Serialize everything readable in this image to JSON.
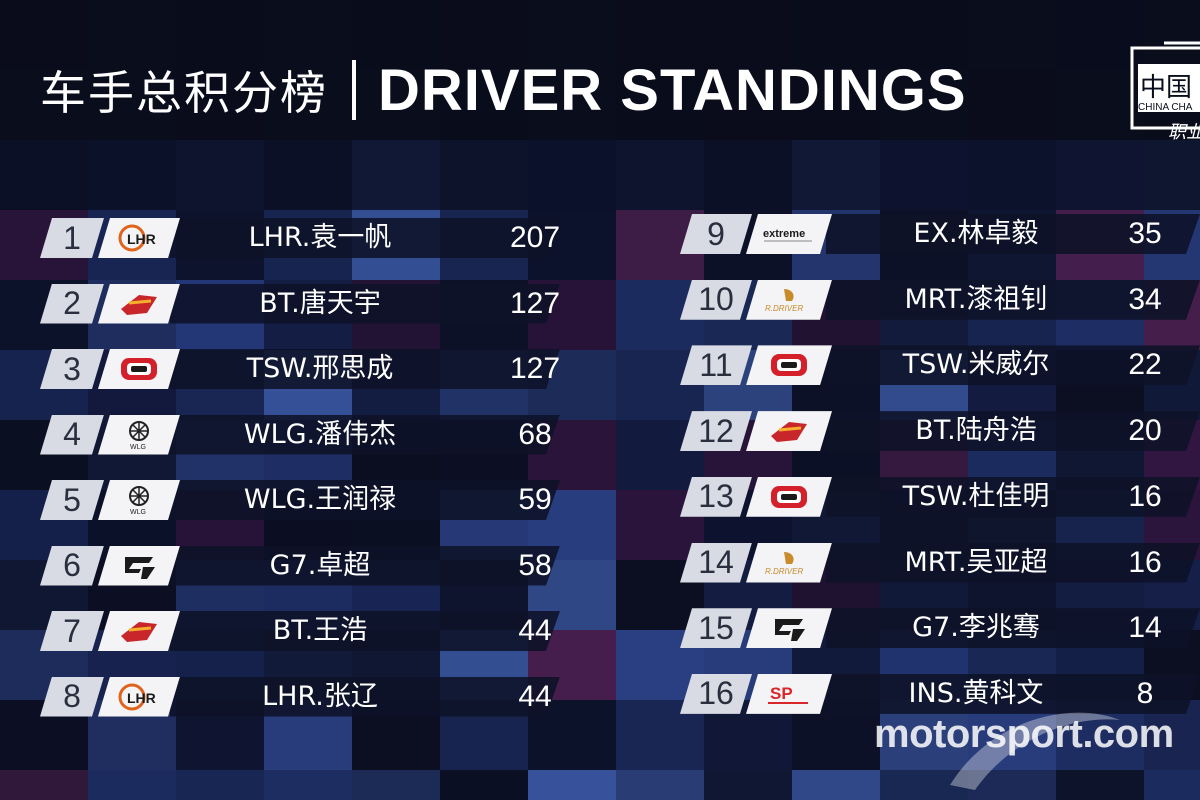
{
  "header": {
    "title_cn": "车手总积分榜",
    "title_en": "DRIVER STANDINGS",
    "series_logo_text_cn": "中国",
    "series_logo_text_en": "CHINA CHA",
    "series_logo_sub": "职业"
  },
  "standings": {
    "left": [
      {
        "pos": "1",
        "team": "LHR",
        "driver": "LHR.袁一帆",
        "points": "207",
        "logo": "lhr-logo"
      },
      {
        "pos": "2",
        "team": "BT",
        "driver": "BT.唐天宇",
        "points": "127",
        "logo": "bt-logo"
      },
      {
        "pos": "3",
        "team": "TSW",
        "driver": "TSW.邢思成",
        "points": "127",
        "logo": "tsw-logo"
      },
      {
        "pos": "4",
        "team": "WLG",
        "driver": "WLG.潘伟杰",
        "points": "68",
        "logo": "wlg-logo"
      },
      {
        "pos": "5",
        "team": "WLG",
        "driver": "WLG.王润禄",
        "points": "59",
        "logo": "wlg-logo"
      },
      {
        "pos": "6",
        "team": "G7",
        "driver": "G7.卓超",
        "points": "58",
        "logo": "g7-logo"
      },
      {
        "pos": "7",
        "team": "BT",
        "driver": "BT.王浩",
        "points": "44",
        "logo": "bt-logo"
      },
      {
        "pos": "8",
        "team": "LHR",
        "driver": "LHR.张辽",
        "points": "44",
        "logo": "lhr-logo"
      }
    ],
    "right": [
      {
        "pos": "9",
        "team": "EX",
        "driver": "EX.林卓毅",
        "points": "35",
        "logo": "extreme-logo"
      },
      {
        "pos": "10",
        "team": "MRT",
        "driver": "MRT.漆祖钊",
        "points": "34",
        "logo": "mrt-logo"
      },
      {
        "pos": "11",
        "team": "TSW",
        "driver": "TSW.米威尔",
        "points": "22",
        "logo": "tsw-logo"
      },
      {
        "pos": "12",
        "team": "BT",
        "driver": "BT.陆舟浩",
        "points": "20",
        "logo": "bt-logo"
      },
      {
        "pos": "13",
        "team": "TSW",
        "driver": "TSW.杜佳明",
        "points": "16",
        "logo": "tsw-logo"
      },
      {
        "pos": "14",
        "team": "MRT",
        "driver": "MRT.吴亚超",
        "points": "16",
        "logo": "mrt-logo"
      },
      {
        "pos": "15",
        "team": "G7",
        "driver": "G7.李兆骞",
        "points": "14",
        "logo": "g7-logo"
      },
      {
        "pos": "16",
        "team": "INS",
        "driver": "INS.黄科文",
        "points": "8",
        "logo": "ins-logo"
      }
    ]
  },
  "logo_text": {
    "lhr": "LHR",
    "wlg": "WLG",
    "extreme": "extreme",
    "mrt": "R.DRIVER",
    "ins": "SP"
  },
  "watermark": "motorsport.com",
  "colors": {
    "background": "#0a0d1c",
    "name_bar": "#0e1228",
    "pos_box": "#d8dbe3",
    "team_box": "#f4f4f6",
    "bt_red": "#c8262a",
    "lhr_orange": "#e0631b",
    "tsw_red": "#d4202a"
  }
}
